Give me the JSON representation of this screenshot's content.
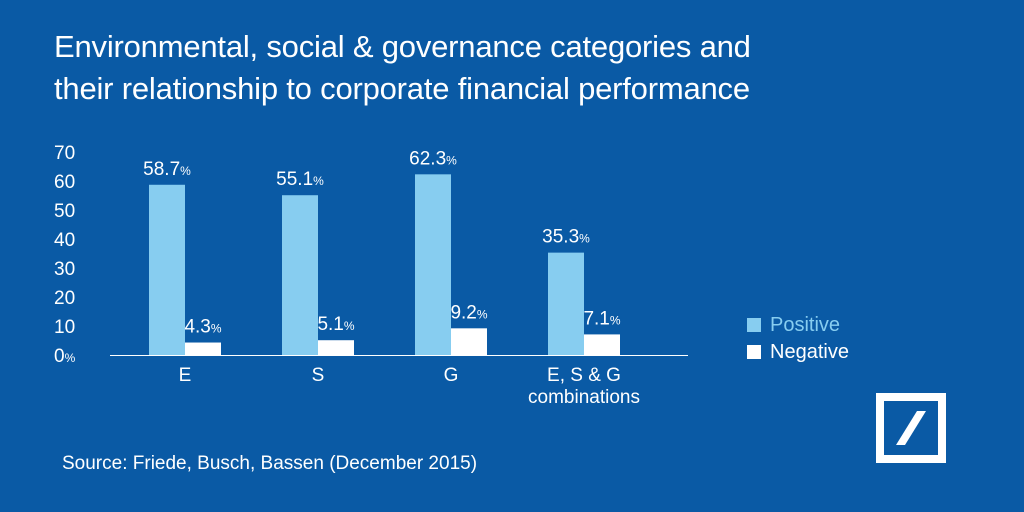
{
  "title": {
    "line1": "Environmental, social & governance categories and",
    "line2": "their relationship to corporate financial performance"
  },
  "source": "Source: Friede, Busch, Bassen (December 2015)",
  "colors": {
    "background": "#0a5aa5",
    "positive": "#87cdf0",
    "negative": "#ffffff"
  },
  "chart_data": {
    "type": "bar",
    "title": "Environmental, social & governance categories and their relationship to corporate financial performance",
    "categories": [
      [
        "E"
      ],
      [
        "S"
      ],
      [
        "G"
      ],
      [
        "E, S & G",
        "combinations"
      ]
    ],
    "series": [
      {
        "name": "Positive",
        "values": [
          58.7,
          55.1,
          62.3,
          35.3
        ],
        "labels": [
          "58.7",
          "55.1",
          "62.3",
          "35.3"
        ]
      },
      {
        "name": "Negative",
        "values": [
          4.3,
          5.1,
          9.2,
          7.1
        ],
        "labels": [
          "4.3",
          "5.1",
          "9.2",
          "7.1"
        ]
      }
    ],
    "value_suffix": "%",
    "yticks": [
      "0",
      "10",
      "20",
      "30",
      "40",
      "50",
      "60",
      "70"
    ],
    "zero_suffix": "%",
    "ylim": [
      0,
      70
    ],
    "xlabel": "",
    "ylabel": "",
    "grid": false,
    "legend": "right"
  },
  "legend": {
    "positive": "Positive",
    "negative": "Negative"
  }
}
